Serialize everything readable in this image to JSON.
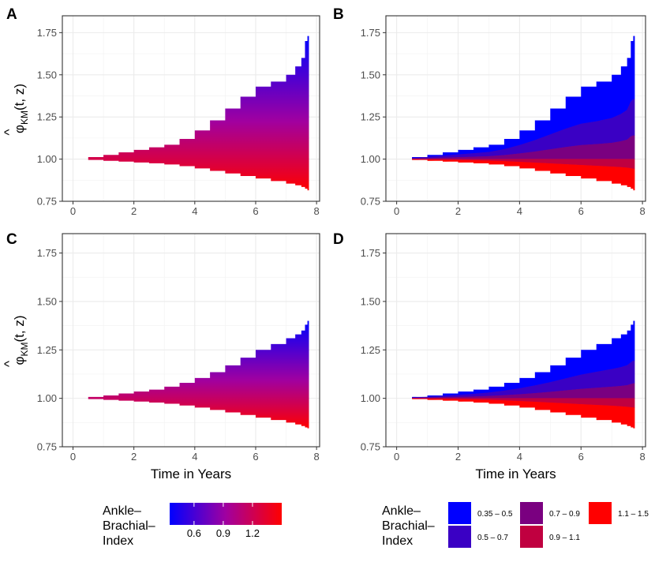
{
  "figure": {
    "x_axis_title": "Time in Years",
    "y_axis_title_main": "φ",
    "y_axis_title_hat": "^",
    "y_axis_title_sub": "KM",
    "y_axis_title_args": "(t, z)"
  },
  "chart_data": [
    {
      "panel": "A",
      "type": "area",
      "fill": "continuous-gradient",
      "x_label": "",
      "ylabel": "φ̂KM(t, z)",
      "xlim": [
        -0.35,
        8.1
      ],
      "ylim": [
        0.75,
        1.85
      ],
      "xticks": [
        0,
        2,
        4,
        6,
        8
      ],
      "yticks": [
        0.75,
        1.0,
        1.25,
        1.5,
        1.75
      ],
      "ytick_labels": [
        "0.75",
        "1.00",
        "1.25",
        "1.50",
        "1.75"
      ],
      "upper_envelope": {
        "x": [
          0.1,
          0.5,
          1,
          1.5,
          2,
          2.5,
          3,
          3.5,
          4,
          4.5,
          5,
          5.5,
          6,
          6.5,
          7,
          7.3,
          7.5,
          7.62,
          7.7,
          7.75
        ],
        "y": [
          1.0,
          1.012,
          1.025,
          1.04,
          1.055,
          1.07,
          1.085,
          1.12,
          1.17,
          1.23,
          1.3,
          1.37,
          1.43,
          1.46,
          1.5,
          1.55,
          1.6,
          1.7,
          1.73,
          1.73
        ]
      },
      "lower_envelope": {
        "x": [
          0.1,
          0.5,
          1,
          1.5,
          2,
          2.5,
          3,
          3.5,
          4,
          4.5,
          5,
          5.5,
          6,
          6.5,
          7,
          7.3,
          7.5,
          7.62,
          7.7,
          7.75
        ],
        "y": [
          1.0,
          0.995,
          0.99,
          0.985,
          0.98,
          0.975,
          0.968,
          0.958,
          0.945,
          0.93,
          0.915,
          0.9,
          0.885,
          0.87,
          0.855,
          0.845,
          0.835,
          0.825,
          0.815,
          0.815
        ]
      }
    },
    {
      "panel": "B",
      "type": "area",
      "fill": "binned",
      "x_label": "",
      "ylabel": "",
      "xlim": [
        -0.35,
        8.1
      ],
      "ylim": [
        0.75,
        1.85
      ],
      "xticks": [
        0,
        2,
        4,
        6,
        8
      ],
      "yticks": [
        0.75,
        1.0,
        1.25,
        1.5,
        1.75
      ],
      "ytick_labels": [
        "0.75",
        "1.00",
        "1.25",
        "1.50",
        "1.75"
      ],
      "upper_envelope": {
        "x": [
          0.1,
          0.5,
          1,
          1.5,
          2,
          2.5,
          3,
          3.5,
          4,
          4.5,
          5,
          5.5,
          6,
          6.5,
          7,
          7.3,
          7.5,
          7.62,
          7.7,
          7.75
        ],
        "y": [
          1.0,
          1.012,
          1.025,
          1.04,
          1.055,
          1.07,
          1.085,
          1.12,
          1.17,
          1.23,
          1.3,
          1.37,
          1.43,
          1.46,
          1.5,
          1.55,
          1.6,
          1.7,
          1.73,
          1.73
        ]
      },
      "lower_envelope": {
        "x": [
          0.1,
          0.5,
          1,
          1.5,
          2,
          2.5,
          3,
          3.5,
          4,
          4.5,
          5,
          5.5,
          6,
          6.5,
          7,
          7.3,
          7.5,
          7.62,
          7.7,
          7.75
        ],
        "y": [
          1.0,
          0.995,
          0.99,
          0.985,
          0.98,
          0.975,
          0.968,
          0.958,
          0.945,
          0.93,
          0.915,
          0.9,
          0.885,
          0.87,
          0.855,
          0.845,
          0.835,
          0.825,
          0.815,
          0.815
        ]
      }
    },
    {
      "panel": "C",
      "type": "area",
      "fill": "continuous-gradient",
      "x_label": "Time in Years",
      "ylabel": "φ̂KM(t, z)",
      "xlim": [
        -0.35,
        8.1
      ],
      "ylim": [
        0.75,
        1.85
      ],
      "xticks": [
        0,
        2,
        4,
        6,
        8
      ],
      "yticks": [
        0.75,
        1.0,
        1.25,
        1.5,
        1.75
      ],
      "ytick_labels": [
        "0.75",
        "1.00",
        "1.25",
        "1.50",
        "1.75"
      ],
      "upper_envelope": {
        "x": [
          0.1,
          0.5,
          1,
          1.5,
          2,
          2.5,
          3,
          3.5,
          4,
          4.5,
          5,
          5.5,
          6,
          6.5,
          7,
          7.3,
          7.5,
          7.62,
          7.7,
          7.75
        ],
        "y": [
          1.0,
          1.007,
          1.015,
          1.025,
          1.035,
          1.045,
          1.06,
          1.08,
          1.105,
          1.135,
          1.17,
          1.21,
          1.25,
          1.28,
          1.31,
          1.33,
          1.35,
          1.38,
          1.4,
          1.4
        ]
      },
      "lower_envelope": {
        "x": [
          0.1,
          0.5,
          1,
          1.5,
          2,
          2.5,
          3,
          3.5,
          4,
          4.5,
          5,
          5.5,
          6,
          6.5,
          7,
          7.3,
          7.5,
          7.62,
          7.7,
          7.75
        ],
        "y": [
          1.0,
          0.996,
          0.992,
          0.988,
          0.983,
          0.978,
          0.972,
          0.963,
          0.952,
          0.94,
          0.927,
          0.914,
          0.9,
          0.888,
          0.875,
          0.865,
          0.857,
          0.85,
          0.845,
          0.845
        ]
      }
    },
    {
      "panel": "D",
      "type": "area",
      "fill": "binned",
      "x_label": "Time in Years",
      "ylabel": "",
      "xlim": [
        -0.35,
        8.1
      ],
      "ylim": [
        0.75,
        1.85
      ],
      "xticks": [
        0,
        2,
        4,
        6,
        8
      ],
      "yticks": [
        0.75,
        1.0,
        1.25,
        1.5,
        1.75
      ],
      "ytick_labels": [
        "0.75",
        "1.00",
        "1.25",
        "1.50",
        "1.75"
      ],
      "upper_envelope": {
        "x": [
          0.1,
          0.5,
          1,
          1.5,
          2,
          2.5,
          3,
          3.5,
          4,
          4.5,
          5,
          5.5,
          6,
          6.5,
          7,
          7.3,
          7.5,
          7.62,
          7.7,
          7.75
        ],
        "y": [
          1.0,
          1.007,
          1.015,
          1.025,
          1.035,
          1.045,
          1.06,
          1.08,
          1.105,
          1.135,
          1.17,
          1.21,
          1.25,
          1.28,
          1.31,
          1.33,
          1.35,
          1.38,
          1.4,
          1.4
        ]
      },
      "lower_envelope": {
        "x": [
          0.1,
          0.5,
          1,
          1.5,
          2,
          2.5,
          3,
          3.5,
          4,
          4.5,
          5,
          5.5,
          6,
          6.5,
          7,
          7.3,
          7.5,
          7.62,
          7.7,
          7.75
        ],
        "y": [
          1.0,
          0.996,
          0.992,
          0.988,
          0.983,
          0.978,
          0.972,
          0.963,
          0.952,
          0.94,
          0.927,
          0.914,
          0.9,
          0.888,
          0.875,
          0.865,
          0.857,
          0.85,
          0.845,
          0.845
        ]
      }
    }
  ],
  "legend_continuous": {
    "title_lines": [
      "Ankle–",
      "Brachial–",
      "Index"
    ],
    "range": [
      0.35,
      1.5
    ],
    "color_low": "#0000ff",
    "color_mid": "#a000a0",
    "color_high": "#ff0000",
    "ticks": [
      0.6,
      0.9,
      1.2
    ],
    "tick_labels": [
      "0.6",
      "0.9",
      "1.2"
    ]
  },
  "legend_binned": {
    "title_lines": [
      "Ankle–",
      "Brachial–",
      "Index"
    ],
    "items": [
      {
        "label": "0.35 – 0.5",
        "color": "#0000ff"
      },
      {
        "label": "0.5 – 0.7",
        "color": "#3a00c4"
      },
      {
        "label": "0.7 – 0.9",
        "color": "#7a0080"
      },
      {
        "label": "0.9 – 1.1",
        "color": "#c00040"
      },
      {
        "label": "1.1 – 1.5",
        "color": "#ff0000"
      }
    ]
  }
}
